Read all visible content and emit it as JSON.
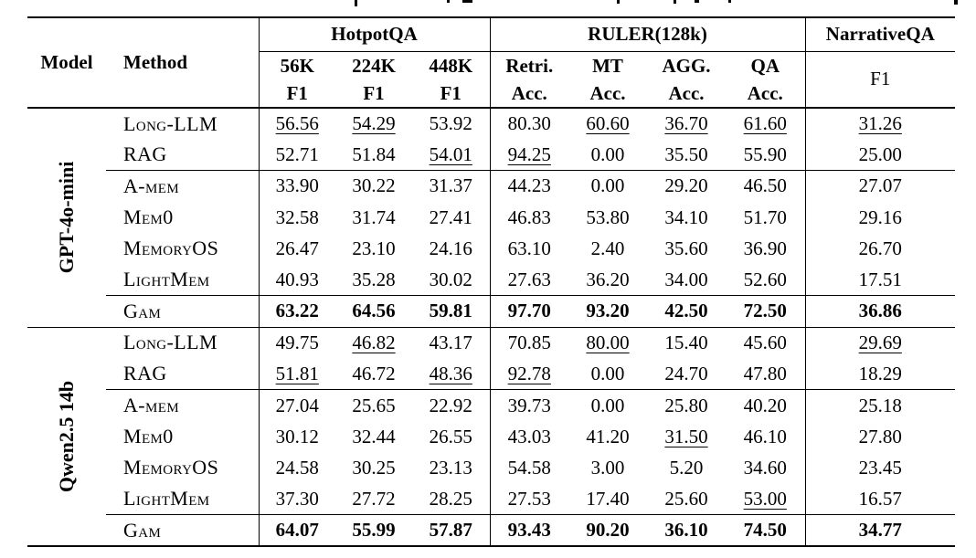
{
  "header": {
    "model": "Model",
    "method": "Method",
    "groups": [
      {
        "label": "HotpotQA",
        "subs": [
          {
            "top": "56K",
            "bottom": "F1"
          },
          {
            "top": "224K",
            "bottom": "F1"
          },
          {
            "top": "448K",
            "bottom": "F1"
          }
        ]
      },
      {
        "label": "RULER(128k)",
        "subs": [
          {
            "top": "Retri.",
            "bottom": "Acc."
          },
          {
            "top": "MT",
            "bottom": "Acc."
          },
          {
            "top": "AGG.",
            "bottom": "Acc."
          },
          {
            "top": "QA",
            "bottom": "Acc."
          }
        ]
      },
      {
        "label": "NarrativeQA",
        "sub": "F1"
      }
    ]
  },
  "sections": [
    {
      "model": "GPT-4o-mini",
      "rows": [
        {
          "method": "Long-LLM",
          "cells": [
            [
              "56.56",
              "u"
            ],
            [
              "54.29",
              "u"
            ],
            [
              "53.92",
              ""
            ],
            [
              "80.30",
              ""
            ],
            [
              "60.60",
              "u"
            ],
            [
              "36.70",
              "u"
            ],
            [
              "61.60",
              "u"
            ],
            [
              "31.26",
              "u"
            ]
          ]
        },
        {
          "method": "RAG",
          "cells": [
            [
              "52.71",
              ""
            ],
            [
              "51.84",
              ""
            ],
            [
              "54.01",
              "u"
            ],
            [
              "94.25",
              "u"
            ],
            [
              "0.00",
              ""
            ],
            [
              "35.50",
              ""
            ],
            [
              "55.90",
              ""
            ],
            [
              "25.00",
              ""
            ]
          ]
        },
        {
          "method": "A-mem",
          "rule_above": true,
          "cells": [
            [
              "33.90",
              ""
            ],
            [
              "30.22",
              ""
            ],
            [
              "31.37",
              ""
            ],
            [
              "44.23",
              ""
            ],
            [
              "0.00",
              ""
            ],
            [
              "29.20",
              ""
            ],
            [
              "46.50",
              ""
            ],
            [
              "27.07",
              ""
            ]
          ]
        },
        {
          "method": "Mem0",
          "cells": [
            [
              "32.58",
              ""
            ],
            [
              "31.74",
              ""
            ],
            [
              "27.41",
              ""
            ],
            [
              "46.83",
              ""
            ],
            [
              "53.80",
              ""
            ],
            [
              "34.10",
              ""
            ],
            [
              "51.70",
              ""
            ],
            [
              "29.16",
              ""
            ]
          ]
        },
        {
          "method": "MemoryOS",
          "cells": [
            [
              "26.47",
              ""
            ],
            [
              "23.10",
              ""
            ],
            [
              "24.16",
              ""
            ],
            [
              "63.10",
              ""
            ],
            [
              "2.40",
              ""
            ],
            [
              "35.60",
              ""
            ],
            [
              "36.90",
              ""
            ],
            [
              "26.70",
              ""
            ]
          ]
        },
        {
          "method": "LightMem",
          "cells": [
            [
              "40.93",
              ""
            ],
            [
              "35.28",
              ""
            ],
            [
              "30.02",
              ""
            ],
            [
              "27.63",
              ""
            ],
            [
              "36.20",
              ""
            ],
            [
              "34.00",
              ""
            ],
            [
              "52.60",
              ""
            ],
            [
              "17.51",
              ""
            ]
          ]
        },
        {
          "method": "Gam",
          "bold": true,
          "rule_above": true,
          "cells": [
            [
              "63.22",
              ""
            ],
            [
              "64.56",
              ""
            ],
            [
              "59.81",
              ""
            ],
            [
              "97.70",
              ""
            ],
            [
              "93.20",
              ""
            ],
            [
              "42.50",
              ""
            ],
            [
              "72.50",
              ""
            ],
            [
              "36.86",
              ""
            ]
          ]
        }
      ]
    },
    {
      "model": "Qwen2.5 14b",
      "rows": [
        {
          "method": "Long-LLM",
          "cells": [
            [
              "49.75",
              ""
            ],
            [
              "46.82",
              "u"
            ],
            [
              "43.17",
              ""
            ],
            [
              "70.85",
              ""
            ],
            [
              "80.00",
              "u"
            ],
            [
              "15.40",
              ""
            ],
            [
              "45.60",
              ""
            ],
            [
              "29.69",
              "u"
            ]
          ]
        },
        {
          "method": "RAG",
          "cells": [
            [
              "51.81",
              "u"
            ],
            [
              "46.72",
              ""
            ],
            [
              "48.36",
              "u"
            ],
            [
              "92.78",
              "u"
            ],
            [
              "0.00",
              ""
            ],
            [
              "24.70",
              ""
            ],
            [
              "47.80",
              ""
            ],
            [
              "18.29",
              ""
            ]
          ]
        },
        {
          "method": "A-mem",
          "rule_above": true,
          "cells": [
            [
              "27.04",
              ""
            ],
            [
              "25.65",
              ""
            ],
            [
              "22.92",
              ""
            ],
            [
              "39.73",
              ""
            ],
            [
              "0.00",
              ""
            ],
            [
              "25.80",
              ""
            ],
            [
              "40.20",
              ""
            ],
            [
              "25.18",
              ""
            ]
          ]
        },
        {
          "method": "Mem0",
          "cells": [
            [
              "30.12",
              ""
            ],
            [
              "32.44",
              ""
            ],
            [
              "26.55",
              ""
            ],
            [
              "43.03",
              ""
            ],
            [
              "41.20",
              ""
            ],
            [
              "31.50",
              "u"
            ],
            [
              "46.10",
              ""
            ],
            [
              "27.80",
              ""
            ]
          ]
        },
        {
          "method": "MemoryOS",
          "cells": [
            [
              "24.58",
              ""
            ],
            [
              "30.25",
              ""
            ],
            [
              "23.13",
              ""
            ],
            [
              "54.58",
              ""
            ],
            [
              "3.00",
              ""
            ],
            [
              "5.20",
              ""
            ],
            [
              "34.60",
              ""
            ],
            [
              "23.45",
              ""
            ]
          ]
        },
        {
          "method": "LightMem",
          "cells": [
            [
              "37.30",
              ""
            ],
            [
              "27.72",
              ""
            ],
            [
              "28.25",
              ""
            ],
            [
              "27.53",
              ""
            ],
            [
              "17.40",
              ""
            ],
            [
              "25.60",
              ""
            ],
            [
              "53.00",
              "u"
            ],
            [
              "16.57",
              ""
            ]
          ]
        },
        {
          "method": "Gam",
          "bold": true,
          "rule_above": true,
          "cells": [
            [
              "64.07",
              ""
            ],
            [
              "55.99",
              ""
            ],
            [
              "57.87",
              ""
            ],
            [
              "93.43",
              ""
            ],
            [
              "90.20",
              ""
            ],
            [
              "36.10",
              ""
            ],
            [
              "74.50",
              ""
            ],
            [
              "34.77",
              ""
            ]
          ]
        }
      ]
    }
  ]
}
